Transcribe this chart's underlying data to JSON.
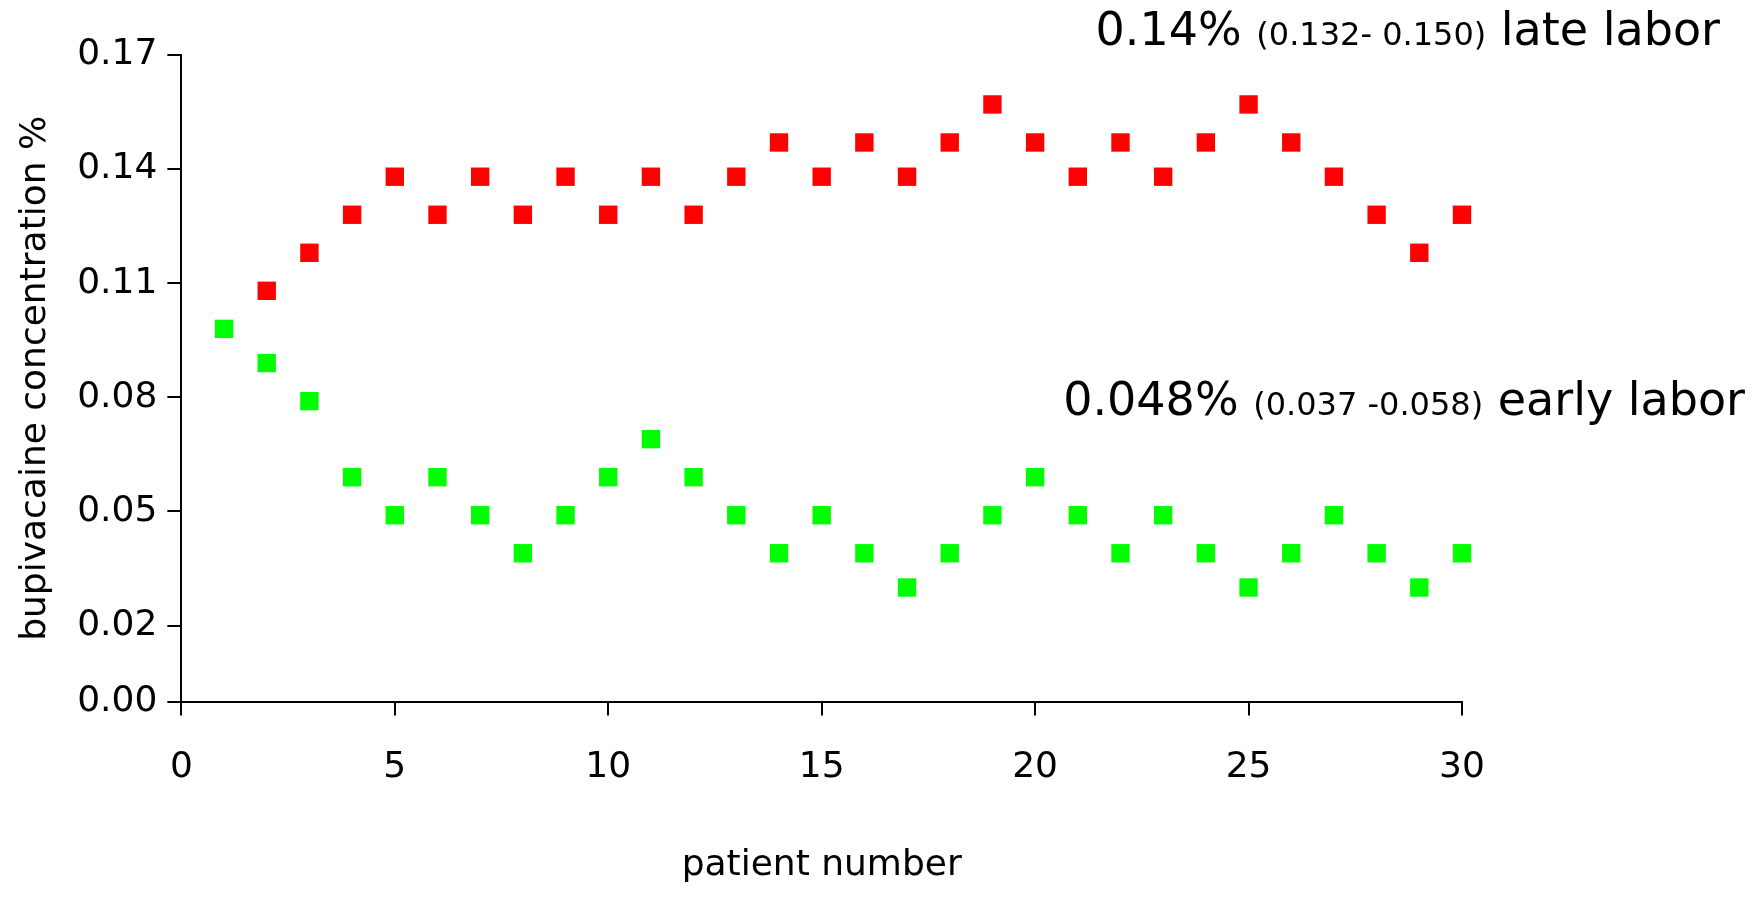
{
  "chart_data": {
    "type": "scatter",
    "xlabel": "patient number",
    "ylabel": "bupivacaine concentration %",
    "xlim": [
      0,
      30
    ],
    "xticks": [
      0,
      5,
      10,
      15,
      20,
      25,
      30
    ],
    "ylim": [
      0,
      0.17
    ],
    "yticks": [
      {
        "value": 0,
        "label": "0.00"
      },
      {
        "value": 0.02,
        "label": "0.02"
      },
      {
        "value": 0.05,
        "label": "0.05"
      },
      {
        "value": 0.08,
        "label": "0.08"
      },
      {
        "value": 0.11,
        "label": "0.11"
      },
      {
        "value": 0.14,
        "label": "0.14"
      },
      {
        "value": 0.17,
        "label": "0.17"
      }
    ],
    "marker": "square",
    "grid": false,
    "legend": false,
    "annotations": [
      "0.14% (0.132- 0.150) late labor",
      "0.048% (0.037 -0.058) early labor"
    ],
    "series": [
      {
        "color": "#ff0000",
        "x": [
          2,
          3,
          4,
          5,
          6,
          7,
          8,
          9,
          10,
          11,
          12,
          13,
          14,
          15,
          16,
          17,
          18,
          19,
          20,
          21,
          22,
          23,
          24,
          25,
          26,
          27,
          28,
          29,
          30
        ],
        "values": [
          0.108,
          0.118,
          0.128,
          0.138,
          0.128,
          0.138,
          0.128,
          0.138,
          0.128,
          0.138,
          0.128,
          0.138,
          0.147,
          0.138,
          0.147,
          0.138,
          0.147,
          0.157,
          0.147,
          0.138,
          0.147,
          0.138,
          0.147,
          0.157,
          0.147,
          0.138,
          0.128,
          0.118,
          0.128
        ]
      },
      {
        "color": "#00ff00",
        "x": [
          1,
          2,
          3,
          4,
          5,
          6,
          7,
          8,
          9,
          10,
          11,
          12,
          13,
          14,
          15,
          16,
          17,
          18,
          19,
          20,
          21,
          22,
          23,
          24,
          25,
          26,
          27,
          28,
          29,
          30
        ],
        "values": [
          0.098,
          0.089,
          0.079,
          0.059,
          0.049,
          0.059,
          0.049,
          0.039,
          0.049,
          0.059,
          0.069,
          0.059,
          0.049,
          0.039,
          0.049,
          0.039,
          0.03,
          0.039,
          0.049,
          0.059,
          0.049,
          0.039,
          0.049,
          0.039,
          0.03,
          0.039,
          0.049,
          0.039,
          0.03,
          0.039
        ]
      }
    ]
  }
}
